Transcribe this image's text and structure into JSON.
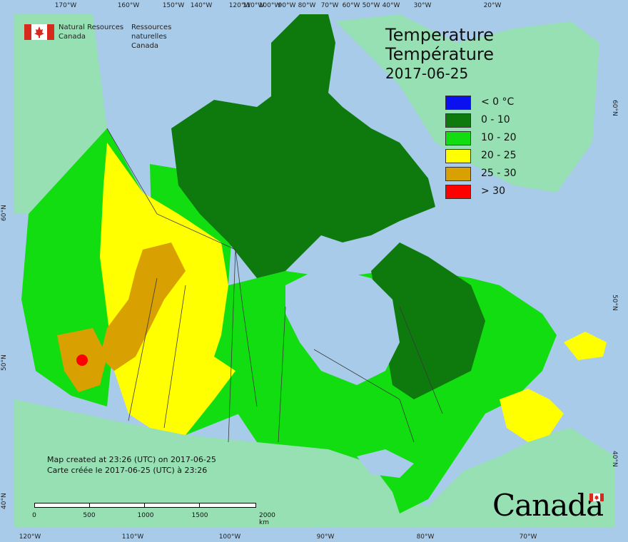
{
  "map": {
    "agency_en": [
      "Natural Resources",
      "Canada"
    ],
    "agency_fr": [
      "Ressources naturelles",
      "Canada"
    ],
    "title_en": "Temperature",
    "title_fr": "Température",
    "date": "2017-06-25",
    "legend": [
      {
        "label": "< 0 °C",
        "color": "#0a10f0"
      },
      {
        "label": "0 - 10",
        "color": "#0e7a0e"
      },
      {
        "label": "10 - 20",
        "color": "#11dd11"
      },
      {
        "label": "20 - 25",
        "color": "#ffff00"
      },
      {
        "label": "25 - 30",
        "color": "#d8a000"
      },
      {
        "label": "> 30",
        "color": "#ff0000"
      }
    ],
    "credit_en": "Map created at 23:26 (UTC) on 2017-06-25",
    "credit_fr": "Carte créée le 2017-06-25 (UTC) à 23:26",
    "scale_labels": [
      "0",
      "500",
      "1000",
      "1500",
      "2000 km"
    ],
    "top_ticks": [
      "170°W",
      "160°W",
      "150°W",
      "140°W",
      "120°W",
      "110°W",
      "100°W",
      "90°W",
      "80°W",
      "70°W",
      "60°W",
      "50°W",
      "40°W",
      "30°W",
      "20°W"
    ],
    "bottom_ticks": [
      "120°W",
      "110°W",
      "100°W",
      "90°W",
      "80°W",
      "70°W"
    ],
    "left_ticks": [
      "60°N",
      "50°N",
      "40°N"
    ],
    "right_ticks": [
      "60°N",
      "50°N",
      "40°N"
    ],
    "wordmark": "Canada",
    "colors": {
      "ocean": "#a8cbea",
      "foreign_land": "#96e0b4",
      "border": "#3a3a3a"
    }
  }
}
